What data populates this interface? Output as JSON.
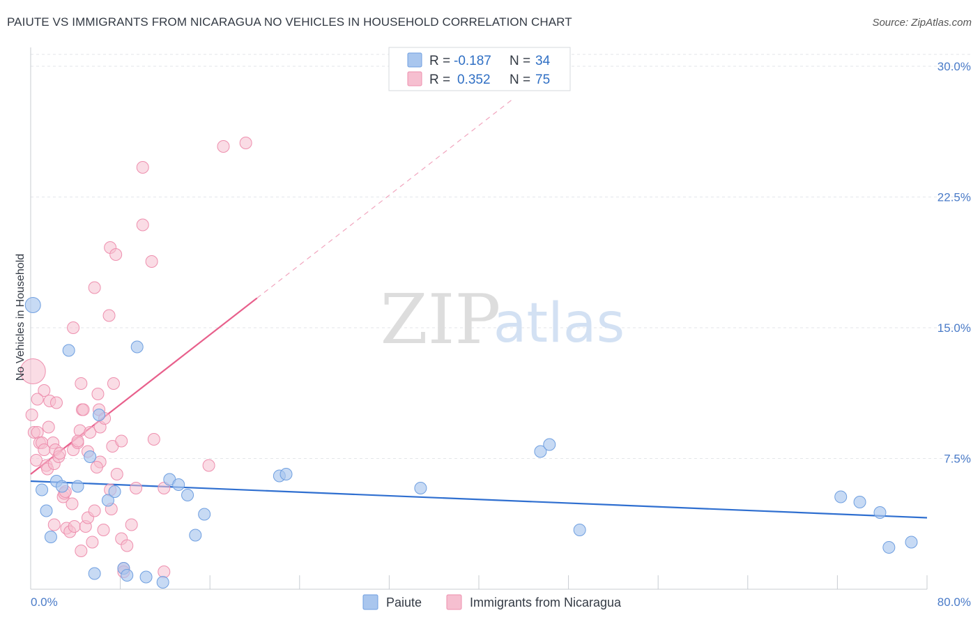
{
  "title": "PAIUTE VS IMMIGRANTS FROM NICARAGUA NO VEHICLES IN HOUSEHOLD CORRELATION CHART",
  "source": "Source: ZipAtlas.com",
  "watermark": {
    "zip": "ZIP",
    "atlas": "atlas"
  },
  "colors": {
    "paiute_fill": "#a9c6ee",
    "paiute_stroke": "#6f9fe0",
    "paiute_line": "#2f6fd0",
    "nica_fill": "#f6bfd0",
    "nica_stroke": "#ee8fae",
    "nica_line": "#e8608c",
    "grid": "#e3e6ea",
    "tick": "#4a7bc8"
  },
  "chart_data": {
    "type": "scatter",
    "title": "PAIUTE VS IMMIGRANTS FROM NICARAGUA NO VEHICLES IN HOUSEHOLD CORRELATION CHART",
    "xlabel": "",
    "ylabel": "No Vehicles in Household",
    "xlim": [
      0,
      80
    ],
    "ylim": [
      0,
      31
    ],
    "x_tick_labels": [
      "0.0%",
      "80.0%"
    ],
    "y_ticks": [
      7.5,
      15.0,
      22.5,
      30.0
    ],
    "y_tick_labels": [
      "7.5%",
      "15.0%",
      "22.5%",
      "30.0%"
    ],
    "legend": {
      "r_label": "R =",
      "n_label": "N =",
      "entries": [
        {
          "name": "Paiute",
          "r": "-0.187",
          "n": "34"
        },
        {
          "name": "Immigrants from Nicaragua",
          "r": "0.352",
          "n": "75"
        }
      ]
    },
    "series": [
      {
        "name": "Paiute",
        "trend": {
          "x1": 0,
          "y1": 6.2,
          "x2": 80,
          "y2": 4.1
        },
        "points": [
          [
            0.2,
            16.3
          ],
          [
            3.4,
            13.7
          ],
          [
            9.5,
            13.9
          ],
          [
            6.1,
            10.0
          ],
          [
            5.3,
            7.6
          ],
          [
            1.0,
            5.7
          ],
          [
            2.3,
            6.2
          ],
          [
            2.8,
            5.9
          ],
          [
            4.2,
            5.9
          ],
          [
            1.4,
            4.5
          ],
          [
            1.8,
            3.0
          ],
          [
            6.9,
            5.1
          ],
          [
            7.5,
            5.6
          ],
          [
            12.4,
            6.3
          ],
          [
            13.2,
            6.0
          ],
          [
            14.0,
            5.4
          ],
          [
            15.5,
            4.3
          ],
          [
            14.7,
            3.1
          ],
          [
            22.2,
            6.5
          ],
          [
            22.8,
            6.6
          ],
          [
            34.8,
            5.8
          ],
          [
            45.5,
            7.9
          ],
          [
            46.3,
            8.3
          ],
          [
            49.0,
            3.4
          ],
          [
            72.3,
            5.3
          ],
          [
            74.0,
            5.0
          ],
          [
            75.8,
            4.4
          ],
          [
            76.6,
            2.4
          ],
          [
            78.6,
            2.7
          ],
          [
            5.7,
            0.9
          ],
          [
            8.3,
            1.2
          ],
          [
            8.6,
            0.8
          ],
          [
            10.3,
            0.7
          ],
          [
            11.8,
            0.4
          ]
        ]
      },
      {
        "name": "Immigrants from Nicaragua",
        "trend": {
          "x1": 0,
          "y1": 6.6,
          "x2": 20.2,
          "y2": 16.7,
          "dash_to_x": 43,
          "dash_to_y": 28.1
        },
        "points": [
          [
            0.2,
            12.5
          ],
          [
            0.1,
            10.0
          ],
          [
            0.3,
            9.0
          ],
          [
            0.6,
            9.0
          ],
          [
            0.5,
            7.4
          ],
          [
            0.8,
            8.4
          ],
          [
            1.0,
            8.4
          ],
          [
            1.2,
            8.0
          ],
          [
            1.4,
            7.1
          ],
          [
            1.5,
            6.9
          ],
          [
            1.6,
            9.3
          ],
          [
            1.7,
            10.8
          ],
          [
            1.2,
            11.4
          ],
          [
            0.6,
            10.9
          ],
          [
            2.0,
            8.4
          ],
          [
            2.2,
            8.0
          ],
          [
            2.1,
            7.2
          ],
          [
            2.5,
            7.6
          ],
          [
            2.6,
            7.8
          ],
          [
            2.1,
            3.7
          ],
          [
            2.9,
            5.3
          ],
          [
            3.0,
            5.5
          ],
          [
            3.1,
            5.6
          ],
          [
            3.2,
            3.5
          ],
          [
            3.5,
            3.3
          ],
          [
            3.7,
            4.9
          ],
          [
            3.8,
            8.0
          ],
          [
            4.2,
            8.4
          ],
          [
            4.4,
            9.1
          ],
          [
            4.2,
            8.5
          ],
          [
            3.9,
            3.6
          ],
          [
            4.5,
            11.8
          ],
          [
            4.6,
            10.3
          ],
          [
            4.7,
            10.3
          ],
          [
            4.9,
            3.6
          ],
          [
            5.1,
            4.1
          ],
          [
            5.1,
            7.9
          ],
          [
            5.3,
            9.0
          ],
          [
            5.5,
            2.7
          ],
          [
            5.7,
            4.5
          ],
          [
            4.5,
            2.2
          ],
          [
            6.5,
            3.4
          ],
          [
            6.0,
            11.2
          ],
          [
            6.1,
            10.3
          ],
          [
            6.2,
            9.3
          ],
          [
            6.6,
            9.8
          ],
          [
            6.2,
            7.3
          ],
          [
            7.1,
            5.7
          ],
          [
            7.2,
            4.6
          ],
          [
            7.4,
            11.8
          ],
          [
            7.3,
            8.2
          ],
          [
            7.7,
            6.6
          ],
          [
            3.8,
            15.0
          ],
          [
            5.7,
            17.3
          ],
          [
            7.0,
            15.7
          ],
          [
            7.1,
            19.6
          ],
          [
            7.6,
            19.2
          ],
          [
            8.1,
            8.5
          ],
          [
            8.3,
            1.2
          ],
          [
            8.1,
            2.9
          ],
          [
            8.6,
            2.5
          ],
          [
            8.3,
            1.0
          ],
          [
            9.0,
            3.7
          ],
          [
            10.0,
            24.2
          ],
          [
            10.0,
            20.9
          ],
          [
            10.8,
            18.8
          ],
          [
            11.0,
            8.6
          ],
          [
            11.9,
            1.0
          ],
          [
            11.9,
            5.8
          ],
          [
            15.9,
            7.1
          ],
          [
            17.2,
            25.4
          ],
          [
            19.2,
            25.6
          ],
          [
            9.4,
            5.8
          ],
          [
            5.9,
            7.0
          ],
          [
            2.3,
            10.7
          ]
        ]
      }
    ]
  }
}
